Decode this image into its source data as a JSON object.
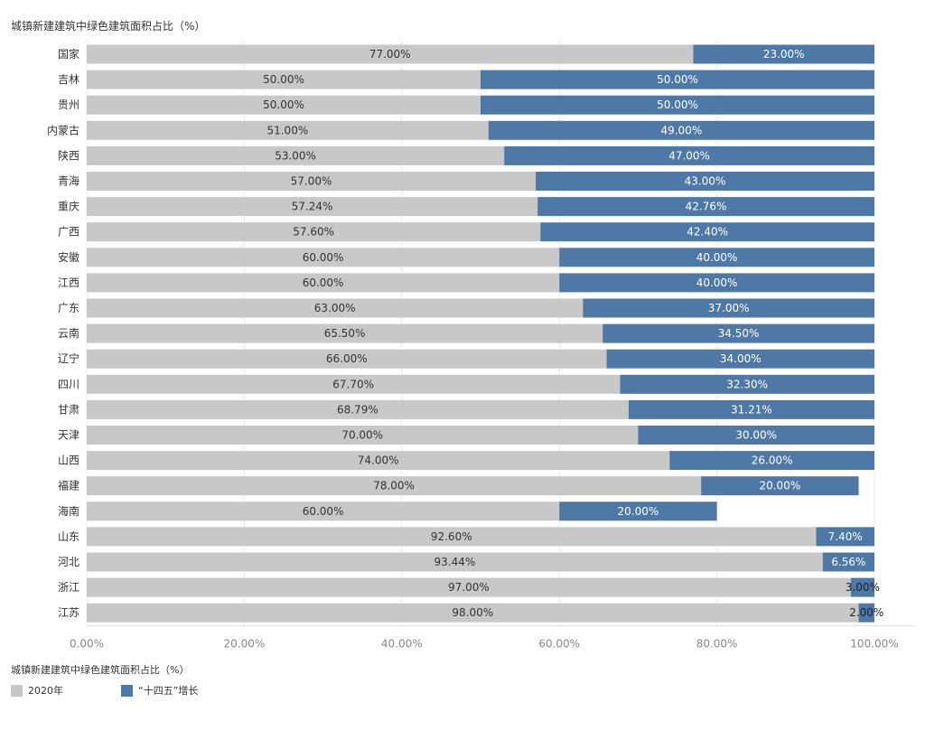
{
  "title": "城镇新建建筑中绿色建筑面积占比（%）",
  "legend": {
    "title": "城镇新建建筑中绿色建筑面积占比（%）",
    "items": [
      {
        "label": "2020年",
        "color": "#c8c8c8"
      },
      {
        "label": "“十四五”增长",
        "color": "#4e79a7"
      }
    ]
  },
  "chart_data": {
    "type": "bar",
    "orientation": "horizontal",
    "stacked": true,
    "title": "城镇新建建筑中绿色建筑面积占比（%）",
    "xlim": [
      0,
      100
    ],
    "x_ticks": [
      "0.00%",
      "20.00%",
      "40.00%",
      "60.00%",
      "80.00%",
      "100.00%"
    ],
    "grid": true,
    "categories": [
      "国家",
      "吉林",
      "贵州",
      "内蒙古",
      "陕西",
      "青海",
      "重庆",
      "广西",
      "安徽",
      "江西",
      "广东",
      "云南",
      "辽宁",
      "四川",
      "甘肃",
      "天津",
      "山西",
      "福建",
      "海南",
      "山东",
      "河北",
      "浙江",
      "江苏"
    ],
    "series": [
      {
        "name": "2020年",
        "color": "#c8c8c8",
        "values": [
          77.0,
          50.0,
          50.0,
          51.0,
          53.0,
          57.0,
          57.24,
          57.6,
          60.0,
          60.0,
          63.0,
          65.5,
          66.0,
          67.7,
          68.79,
          70.0,
          74.0,
          78.0,
          60.0,
          92.6,
          93.44,
          97.0,
          98.0
        ],
        "labels": [
          "77.00%",
          "50.00%",
          "50.00%",
          "51.00%",
          "53.00%",
          "57.00%",
          "57.24%",
          "57.60%",
          "60.00%",
          "60.00%",
          "63.00%",
          "65.50%",
          "66.00%",
          "67.70%",
          "68.79%",
          "70.00%",
          "74.00%",
          "78.00%",
          "60.00%",
          "92.60%",
          "93.44%",
          "97.00%",
          "98.00%"
        ]
      },
      {
        "name": "“十四五”增长",
        "color": "#4e79a7",
        "values": [
          23.0,
          50.0,
          50.0,
          49.0,
          47.0,
          43.0,
          42.76,
          42.4,
          40.0,
          40.0,
          37.0,
          34.5,
          34.0,
          32.3,
          31.21,
          30.0,
          26.0,
          20.0,
          20.0,
          7.4,
          6.56,
          3.0,
          2.0
        ],
        "labels": [
          "23.00%",
          "50.00%",
          "50.00%",
          "49.00%",
          "47.00%",
          "43.00%",
          "42.76%",
          "42.40%",
          "40.00%",
          "40.00%",
          "37.00%",
          "34.50%",
          "34.00%",
          "32.30%",
          "31.21%",
          "30.00%",
          "26.00%",
          "20.00%",
          "20.00%",
          "7.40%",
          "6.56%",
          "3.00%",
          "2.00%"
        ]
      }
    ]
  }
}
